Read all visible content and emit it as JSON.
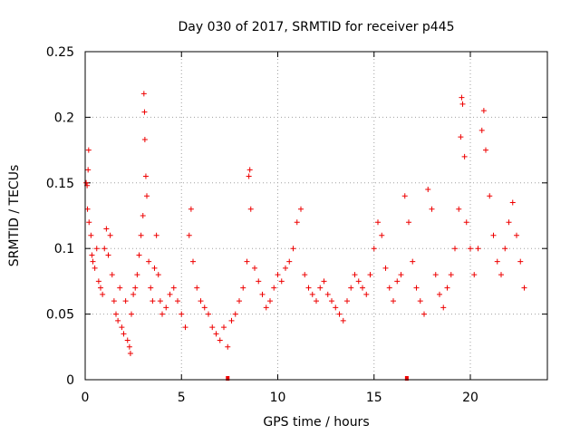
{
  "chart_data": {
    "type": "scatter",
    "title": "Day 030 of 2017, SRMTID for receiver p445",
    "xlabel": "GPS time / hours",
    "ylabel": "SRMTID / TECUs",
    "xlim": [
      0,
      24
    ],
    "ylim": [
      0,
      0.25
    ],
    "xticks": [
      0,
      5,
      10,
      15,
      20
    ],
    "xtick_labels": [
      "0",
      "5",
      "10",
      "15",
      "20"
    ],
    "yticks": [
      0,
      0.05,
      0.1,
      0.15,
      0.2,
      0.25
    ],
    "ytick_labels": [
      "0",
      "0.05",
      "0.1",
      "0.15",
      "0.2",
      "0.25"
    ],
    "grid": true,
    "marker": "+",
    "color": "#ee0000",
    "series": [
      {
        "name": "SRMTID",
        "points": [
          [
            0.05,
            0.15
          ],
          [
            0.1,
            0.148
          ],
          [
            0.12,
            0.13
          ],
          [
            0.15,
            0.16
          ],
          [
            0.18,
            0.175
          ],
          [
            0.2,
            0.12
          ],
          [
            0.3,
            0.11
          ],
          [
            0.35,
            0.095
          ],
          [
            0.4,
            0.09
          ],
          [
            0.5,
            0.085
          ],
          [
            0.6,
            0.1
          ],
          [
            0.7,
            0.075
          ],
          [
            0.8,
            0.07
          ],
          [
            0.9,
            0.065
          ],
          [
            1.0,
            0.1
          ],
          [
            1.1,
            0.115
          ],
          [
            1.2,
            0.095
          ],
          [
            1.3,
            0.11
          ],
          [
            1.4,
            0.08
          ],
          [
            1.5,
            0.06
          ],
          [
            1.6,
            0.05
          ],
          [
            1.7,
            0.045
          ],
          [
            1.8,
            0.07
          ],
          [
            1.9,
            0.04
          ],
          [
            2.0,
            0.035
          ],
          [
            2.1,
            0.06
          ],
          [
            2.2,
            0.03
          ],
          [
            2.3,
            0.025
          ],
          [
            2.35,
            0.02
          ],
          [
            2.4,
            0.05
          ],
          [
            2.5,
            0.065
          ],
          [
            2.6,
            0.07
          ],
          [
            2.7,
            0.08
          ],
          [
            2.8,
            0.095
          ],
          [
            2.9,
            0.11
          ],
          [
            3.0,
            0.125
          ],
          [
            3.05,
            0.218
          ],
          [
            3.08,
            0.204
          ],
          [
            3.1,
            0.183
          ],
          [
            3.15,
            0.155
          ],
          [
            3.2,
            0.14
          ],
          [
            3.3,
            0.09
          ],
          [
            3.4,
            0.07
          ],
          [
            3.5,
            0.06
          ],
          [
            3.6,
            0.085
          ],
          [
            3.7,
            0.11
          ],
          [
            3.8,
            0.08
          ],
          [
            3.9,
            0.06
          ],
          [
            4.0,
            0.05
          ],
          [
            4.2,
            0.055
          ],
          [
            4.4,
            0.065
          ],
          [
            4.6,
            0.07
          ],
          [
            4.8,
            0.06
          ],
          [
            5.0,
            0.05
          ],
          [
            5.2,
            0.04
          ],
          [
            5.4,
            0.11
          ],
          [
            5.5,
            0.13
          ],
          [
            5.6,
            0.09
          ],
          [
            5.8,
            0.07
          ],
          [
            6.0,
            0.06
          ],
          [
            6.2,
            0.055
          ],
          [
            6.4,
            0.05
          ],
          [
            6.6,
            0.04
          ],
          [
            6.8,
            0.035
          ],
          [
            7.0,
            0.03
          ],
          [
            7.2,
            0.04
          ],
          [
            7.4,
            0.025
          ],
          [
            7.6,
            0.045
          ],
          [
            7.8,
            0.05
          ],
          [
            8.0,
            0.06
          ],
          [
            8.2,
            0.07
          ],
          [
            8.4,
            0.09
          ],
          [
            8.5,
            0.155
          ],
          [
            8.55,
            0.16
          ],
          [
            8.6,
            0.13
          ],
          [
            8.8,
            0.085
          ],
          [
            9.0,
            0.075
          ],
          [
            9.2,
            0.065
          ],
          [
            9.4,
            0.055
          ],
          [
            9.6,
            0.06
          ],
          [
            9.8,
            0.07
          ],
          [
            10.0,
            0.08
          ],
          [
            10.2,
            0.075
          ],
          [
            10.4,
            0.085
          ],
          [
            10.6,
            0.09
          ],
          [
            10.8,
            0.1
          ],
          [
            11.0,
            0.12
          ],
          [
            11.2,
            0.13
          ],
          [
            11.4,
            0.08
          ],
          [
            11.6,
            0.07
          ],
          [
            11.8,
            0.065
          ],
          [
            12.0,
            0.06
          ],
          [
            12.2,
            0.07
          ],
          [
            12.4,
            0.075
          ],
          [
            12.6,
            0.065
          ],
          [
            12.8,
            0.06
          ],
          [
            13.0,
            0.055
          ],
          [
            13.2,
            0.05
          ],
          [
            13.4,
            0.045
          ],
          [
            13.6,
            0.06
          ],
          [
            13.8,
            0.07
          ],
          [
            14.0,
            0.08
          ],
          [
            14.2,
            0.075
          ],
          [
            14.4,
            0.07
          ],
          [
            14.6,
            0.065
          ],
          [
            14.8,
            0.08
          ],
          [
            15.0,
            0.1
          ],
          [
            15.2,
            0.12
          ],
          [
            15.4,
            0.11
          ],
          [
            15.6,
            0.085
          ],
          [
            15.8,
            0.07
          ],
          [
            16.0,
            0.06
          ],
          [
            16.2,
            0.075
          ],
          [
            16.4,
            0.08
          ],
          [
            16.6,
            0.14
          ],
          [
            16.8,
            0.12
          ],
          [
            17.0,
            0.09
          ],
          [
            17.2,
            0.07
          ],
          [
            17.4,
            0.06
          ],
          [
            17.6,
            0.05
          ],
          [
            17.8,
            0.145
          ],
          [
            18.0,
            0.13
          ],
          [
            18.2,
            0.08
          ],
          [
            18.4,
            0.065
          ],
          [
            18.6,
            0.055
          ],
          [
            18.8,
            0.07
          ],
          [
            19.0,
            0.08
          ],
          [
            19.2,
            0.1
          ],
          [
            19.4,
            0.13
          ],
          [
            19.5,
            0.185
          ],
          [
            19.55,
            0.215
          ],
          [
            19.6,
            0.21
          ],
          [
            19.7,
            0.17
          ],
          [
            19.8,
            0.12
          ],
          [
            20.0,
            0.1
          ],
          [
            20.2,
            0.08
          ],
          [
            20.4,
            0.1
          ],
          [
            20.6,
            0.19
          ],
          [
            20.7,
            0.205
          ],
          [
            20.8,
            0.175
          ],
          [
            21.0,
            0.14
          ],
          [
            21.2,
            0.11
          ],
          [
            21.4,
            0.09
          ],
          [
            21.6,
            0.08
          ],
          [
            21.8,
            0.1
          ],
          [
            22.0,
            0.12
          ],
          [
            22.2,
            0.135
          ],
          [
            22.4,
            0.11
          ],
          [
            22.6,
            0.09
          ],
          [
            22.8,
            0.07
          ]
        ]
      }
    ],
    "axis_markers": [
      7.4,
      16.7
    ]
  }
}
